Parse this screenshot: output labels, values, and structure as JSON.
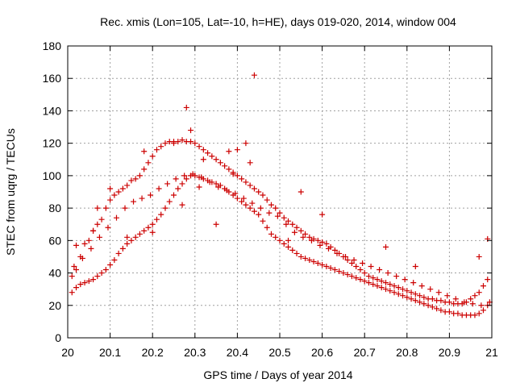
{
  "chart_data": {
    "type": "scatter",
    "title": "Rec. xmis (Lon=105, Lat=-10, h=HE), days 019-020, 2014, window 004",
    "xlabel": "GPS time / Days of year 2014",
    "ylabel": "STEC from uqrg / TECUs",
    "xlim": [
      20,
      21
    ],
    "ylim": [
      0,
      180
    ],
    "xticks": [
      20,
      20.1,
      20.2,
      20.3,
      20.4,
      20.5,
      20.6,
      20.7,
      20.8,
      20.9,
      21
    ],
    "xtick_labels": [
      "20",
      "20.1",
      "20.2",
      "20.3",
      "20.4",
      "20.5",
      "20.6",
      "20.7",
      "20.8",
      "20.9",
      "21"
    ],
    "yticks": [
      0,
      20,
      40,
      60,
      80,
      100,
      120,
      140,
      160,
      180
    ],
    "ytick_labels": [
      "0",
      "20",
      "40",
      "60",
      "80",
      "100",
      "120",
      "140",
      "160",
      "180"
    ],
    "grid": true,
    "marker": "plus",
    "color": "#cc0000",
    "series": [
      {
        "name": "",
        "x": [
          20.01,
          20.02,
          20.03,
          20.04,
          20.05,
          20.06,
          20.07,
          20.08,
          20.09,
          20.1,
          20.11,
          20.12,
          20.13,
          20.14,
          20.15,
          20.16,
          20.17,
          20.18,
          20.19,
          20.2,
          20.21,
          20.22,
          20.23,
          20.24,
          20.25,
          20.26,
          20.27,
          20.28,
          20.29,
          20.3,
          20.31,
          20.32,
          20.33,
          20.34,
          20.35,
          20.36,
          20.37,
          20.38,
          20.39,
          20.4,
          20.41,
          20.42,
          20.43,
          20.44,
          20.45,
          20.46,
          20.47,
          20.48,
          20.49,
          20.5,
          20.51,
          20.52,
          20.53,
          20.54,
          20.55,
          20.56,
          20.57,
          20.58,
          20.59,
          20.6,
          20.61,
          20.62,
          20.63,
          20.64,
          20.65,
          20.66,
          20.67,
          20.68,
          20.69,
          20.7,
          20.71,
          20.72,
          20.73,
          20.74,
          20.75,
          20.76,
          20.77,
          20.78,
          20.79,
          20.8,
          20.81,
          20.82,
          20.83,
          20.84,
          20.85,
          20.86,
          20.87,
          20.88,
          20.89,
          20.9,
          20.91,
          20.92,
          20.93,
          20.94,
          20.95,
          20.96,
          20.97,
          20.98,
          20.99,
          20.01,
          20.02,
          20.03,
          20.04,
          20.05,
          20.06,
          20.07,
          20.08,
          20.09,
          20.1,
          20.11,
          20.12,
          20.13,
          20.14,
          20.15,
          20.16,
          20.17,
          20.18,
          20.19,
          20.2,
          20.21,
          20.22,
          20.23,
          20.24,
          20.25,
          20.26,
          20.27,
          20.28,
          20.29,
          20.3,
          20.31,
          20.32,
          20.33,
          20.34,
          20.35,
          20.36,
          20.37,
          20.38,
          20.39,
          20.4,
          20.41,
          20.42,
          20.43,
          20.44,
          20.45,
          20.46,
          20.47,
          20.48,
          20.49,
          20.5,
          20.51,
          20.52,
          20.53,
          20.54,
          20.55,
          20.56,
          20.57,
          20.58,
          20.59,
          20.6,
          20.61,
          20.62,
          20.63,
          20.64,
          20.65,
          20.66,
          20.67,
          20.68,
          20.69,
          20.7,
          20.71,
          20.72,
          20.73,
          20.74,
          20.75,
          20.76,
          20.77,
          20.78,
          20.79,
          20.8,
          20.81,
          20.82,
          20.83,
          20.84,
          20.85,
          20.86,
          20.87,
          20.88,
          20.89,
          20.9,
          20.91,
          20.92,
          20.93,
          20.94,
          20.95,
          20.96,
          20.97,
          20.98,
          20.99,
          20.015,
          20.035,
          20.055,
          20.075,
          20.095,
          20.115,
          20.135,
          20.155,
          20.175,
          20.195,
          20.215,
          20.235,
          20.255,
          20.275,
          20.295,
          20.315,
          20.335,
          20.355,
          20.375,
          20.395,
          20.415,
          20.435,
          20.455,
          20.475,
          20.495,
          20.515,
          20.535,
          20.555,
          20.575,
          20.595,
          20.615,
          20.635,
          20.655,
          20.675,
          20.695,
          20.715,
          20.735,
          20.755,
          20.775,
          20.795,
          20.815,
          20.835,
          20.855,
          20.875,
          20.895,
          20.915,
          20.935,
          20.955,
          20.975,
          20.995,
          20.02,
          20.06,
          20.07,
          20.1,
          20.14,
          20.18,
          20.2,
          20.25,
          20.27,
          20.28,
          20.29,
          20.31,
          20.32,
          20.35,
          20.38,
          20.39,
          20.4,
          20.42,
          20.43,
          20.44,
          20.52,
          20.55,
          20.6,
          20.75,
          20.82,
          20.97,
          20.99
        ],
        "y": [
          38,
          42,
          50,
          58,
          60,
          66,
          70,
          73,
          80,
          85,
          88,
          90,
          92,
          94,
          97,
          98,
          100,
          104,
          108,
          112,
          116,
          118,
          120,
          121,
          121,
          121,
          122,
          121,
          121,
          120,
          118,
          116,
          114,
          112,
          110,
          108,
          106,
          104,
          102,
          100,
          98,
          96,
          94,
          92,
          90,
          88,
          85,
          82,
          80,
          77,
          74,
          72,
          70,
          68,
          66,
          64,
          62,
          61,
          60,
          59,
          58,
          56,
          54,
          52,
          50,
          48,
          46,
          44,
          42,
          40,
          38,
          37,
          36,
          35,
          34,
          33,
          32,
          31,
          30,
          29,
          28,
          27,
          26,
          25,
          24,
          24,
          23,
          23,
          22,
          22,
          21,
          21,
          21,
          22,
          24,
          26,
          28,
          32,
          36,
          28,
          31,
          33,
          34,
          35,
          36,
          38,
          40,
          42,
          45,
          48,
          52,
          55,
          58,
          60,
          62,
          64,
          66,
          68,
          70,
          73,
          76,
          80,
          84,
          88,
          92,
          95,
          98,
          100,
          100,
          99,
          98,
          97,
          96,
          95,
          94,
          92,
          90,
          88,
          86,
          84,
          82,
          80,
          78,
          76,
          72,
          68,
          64,
          62,
          60,
          58,
          56,
          54,
          52,
          50,
          49,
          48,
          47,
          46,
          45,
          44,
          43,
          42,
          41,
          40,
          39,
          38,
          37,
          36,
          35,
          34,
          33,
          32,
          31,
          30,
          29,
          28,
          27,
          26,
          25,
          24,
          23,
          22,
          21,
          20,
          19,
          18,
          17,
          16,
          16,
          15,
          15,
          14,
          14,
          14,
          14,
          15,
          17,
          20,
          44,
          49,
          55,
          62,
          68,
          74,
          80,
          84,
          86,
          88,
          92,
          95,
          98,
          100,
          101,
          99,
          96,
          93,
          91,
          89,
          86,
          83,
          80,
          77,
          75,
          70,
          65,
          62,
          60,
          57,
          55,
          52,
          50,
          48,
          46,
          44,
          42,
          40,
          38,
          36,
          34,
          32,
          30,
          28,
          26,
          24,
          22,
          21,
          20,
          22,
          57,
          66,
          80,
          92,
          62,
          115,
          65,
          120,
          82,
          142,
          128,
          93,
          110,
          70,
          115,
          101,
          116,
          120,
          108,
          162,
          60,
          90,
          76,
          56,
          44,
          50,
          61
        ]
      }
    ]
  }
}
